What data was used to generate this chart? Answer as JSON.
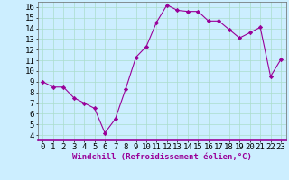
{
  "x": [
    0,
    1,
    2,
    3,
    4,
    5,
    6,
    7,
    8,
    9,
    10,
    11,
    12,
    13,
    14,
    15,
    16,
    17,
    18,
    19,
    20,
    21,
    22,
    23
  ],
  "y": [
    9,
    8.5,
    8.5,
    7.5,
    7,
    6.5,
    4.2,
    5.5,
    8.3,
    11.3,
    12.3,
    14.6,
    16.2,
    15.7,
    15.6,
    15.6,
    14.7,
    14.7,
    13.9,
    13.1,
    13.6,
    14.1,
    9.5,
    11.1
  ],
  "line_color": "#990099",
  "marker": "D",
  "marker_size": 2.2,
  "bg_color": "#cceeff",
  "grid_color": "#aaddcc",
  "xlabel": "Windchill (Refroidissement éolien,°C)",
  "xlabel_fontsize": 6.5,
  "tick_fontsize": 6.5,
  "xlim": [
    -0.5,
    23.5
  ],
  "ylim": [
    3.5,
    16.5
  ],
  "yticks": [
    4,
    5,
    6,
    7,
    8,
    9,
    10,
    11,
    12,
    13,
    14,
    15,
    16
  ],
  "xticks": [
    0,
    1,
    2,
    3,
    4,
    5,
    6,
    7,
    8,
    9,
    10,
    11,
    12,
    13,
    14,
    15,
    16,
    17,
    18,
    19,
    20,
    21,
    22,
    23
  ],
  "spine_color": "#666666",
  "bottom_spine_color": "#990099",
  "title_color": "#990099"
}
